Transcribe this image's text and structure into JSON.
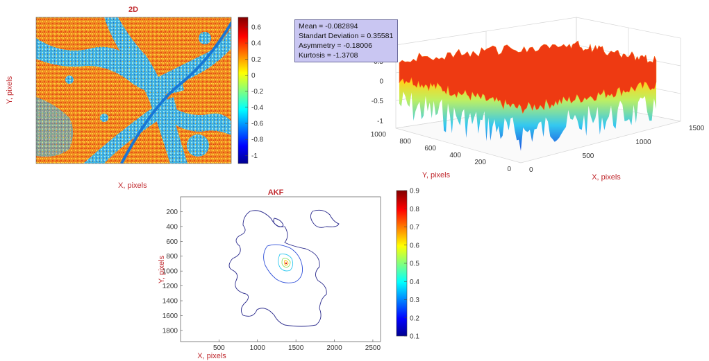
{
  "chart_data": [
    {
      "type": "heatmap",
      "title": "2D",
      "xlabel": "X, pixels",
      "ylabel": "Y, pixels",
      "colorbar": {
        "ticks": [
          "0.6",
          "0.4",
          "0.2",
          "0",
          "-0.2",
          "-0.4",
          "-0.6",
          "-0.8",
          "-1"
        ],
        "range": [
          -1.1,
          0.72
        ],
        "colormap": "jet"
      }
    },
    {
      "type": "surface",
      "zticks": [
        "1",
        "0.5",
        "0",
        "-0.5",
        "-1"
      ],
      "xticks": [
        "0",
        "500",
        "1000",
        "1500"
      ],
      "yticks": [
        "0",
        "200",
        "400",
        "600",
        "800",
        "1000"
      ],
      "xlabel": "X, pixels",
      "ylabel": "Y, pixels",
      "zlim": [
        -1.1,
        1
      ],
      "stats": [
        "Mean = -0.082894",
        "Standart Deviation = 0.35581",
        "Asymmetry = -0.18006",
        "Kurtosis = -1.3708"
      ]
    },
    {
      "type": "contour",
      "title": "AKF",
      "xlabel": "X, pixels",
      "ylabel": "Y, pixels",
      "xticks": [
        "500",
        "1000",
        "1500",
        "2000",
        "2500"
      ],
      "yticks": [
        "200",
        "400",
        "600",
        "800",
        "1000",
        "1200",
        "1400",
        "1600",
        "1800"
      ],
      "xlim": [
        0,
        2600
      ],
      "ylim": [
        0,
        1950
      ],
      "levels": [
        0.15,
        0.3,
        0.45,
        0.6,
        0.75,
        0.9
      ],
      "peak": {
        "x": 1260,
        "y": 960,
        "value": 0.9
      },
      "colorbar": {
        "ticks": [
          "0.9",
          "0.8",
          "0.7",
          "0.6",
          "0.5",
          "0.4",
          "0.3",
          "0.2",
          "0.1"
        ],
        "range": [
          0.1,
          0.9
        ],
        "colormap": "jet"
      }
    }
  ],
  "colors": {
    "label": "#c0282d",
    "contour_outer": "#2a2a8c"
  }
}
